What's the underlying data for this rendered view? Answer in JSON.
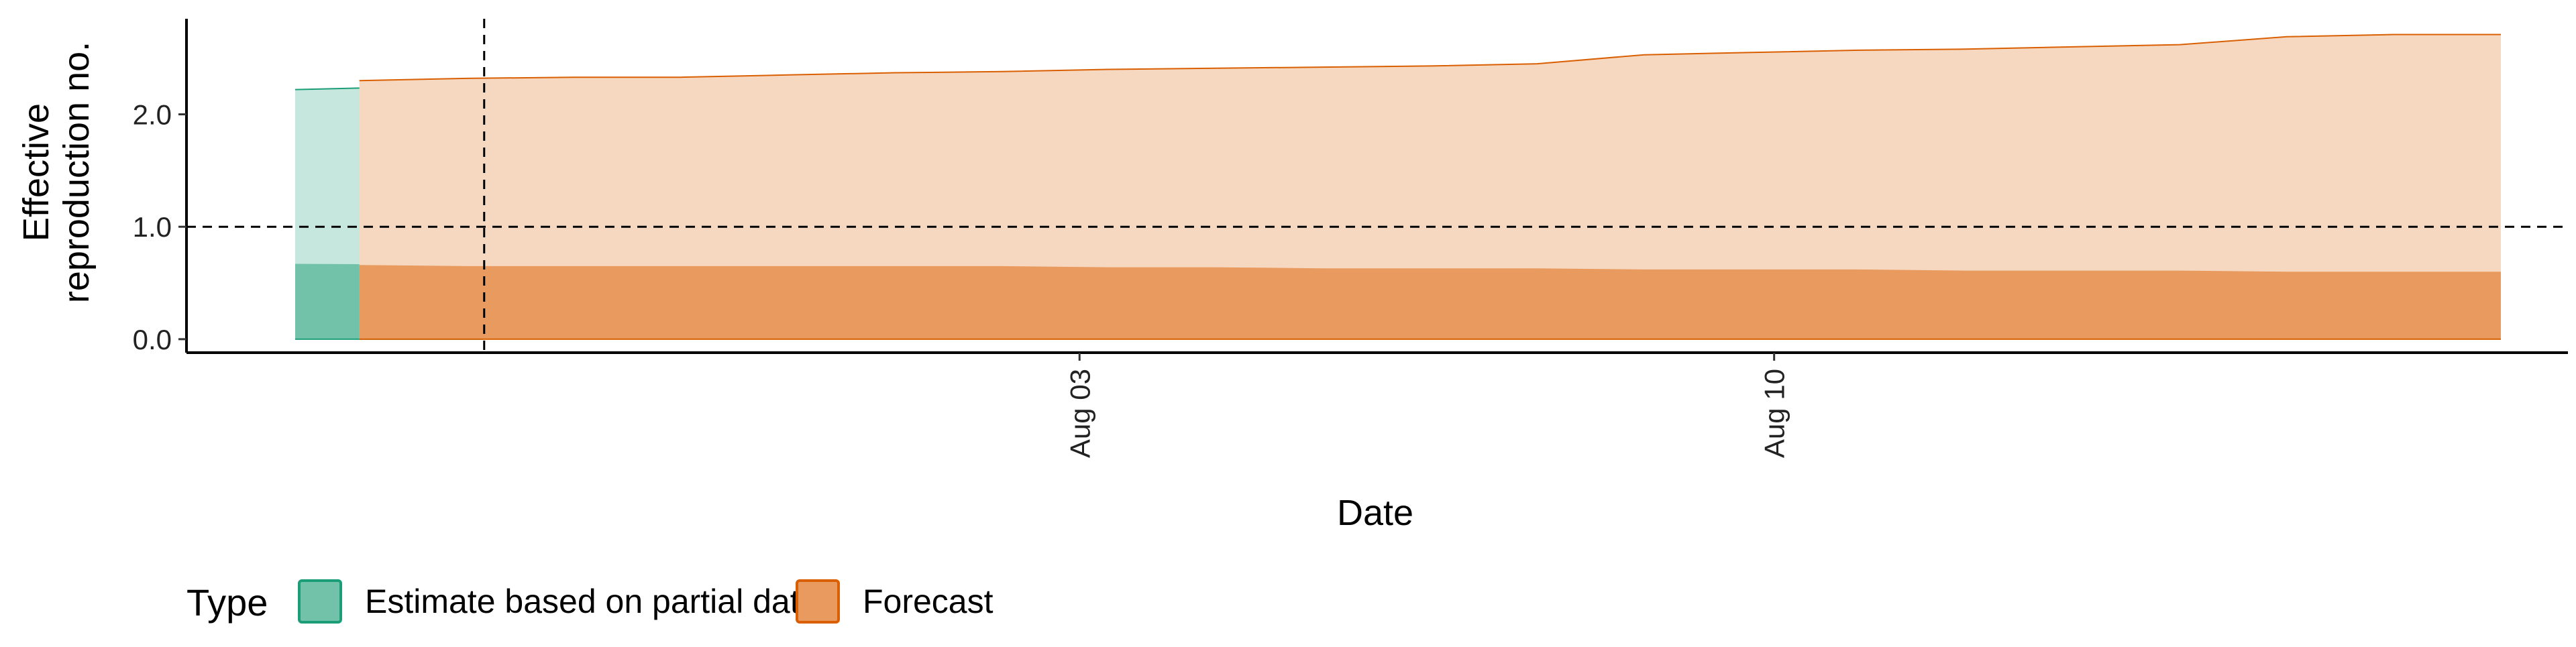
{
  "chart_data": {
    "type": "area",
    "xlabel": "Date",
    "ylabel": [
      "Effective",
      "reproduction no."
    ],
    "ylim": [
      -0.12,
      2.85
    ],
    "y_ticks": [
      {
        "value": 0.0,
        "label": "0.0"
      },
      {
        "value": 1.0,
        "label": "1.0"
      },
      {
        "value": 2.0,
        "label": "2.0"
      }
    ],
    "xlim": [
      "2020-07-25",
      "2020-08-18"
    ],
    "x_ticks": [
      {
        "date": "2020-08-03",
        "label": "Aug 03"
      },
      {
        "date": "2020-08-10",
        "label": "Aug 10"
      }
    ],
    "reference_lines": {
      "horizontal_y": 1.0,
      "vertical_date": "2020-07-28"
    },
    "legend": {
      "title": "Type",
      "position": "bottom-left",
      "items": [
        {
          "label": "Estimate based on partial data",
          "key": "estimate"
        },
        {
          "label": "Forecast",
          "key": "forecast"
        }
      ]
    },
    "series": [
      {
        "key": "estimate",
        "name": "Estimate based on partial data",
        "fill_outer": "#c5e7dd",
        "fill_inner": "#72c2aa",
        "stroke": "#1b9e77",
        "x": [
          "2020-07-26",
          "2020-07-28"
        ],
        "lower_outer": [
          0.0,
          0.0
        ],
        "upper_outer": [
          2.22,
          2.26
        ],
        "lower_inner": [
          0.0,
          0.0
        ],
        "upper_inner": [
          0.67,
          0.66
        ]
      },
      {
        "key": "forecast",
        "name": "Forecast",
        "fill_outer": "#f6d8c1",
        "fill_inner": "#e89a5f",
        "stroke": "#d95f02",
        "x": [
          "2020-07-29",
          "2020-07-30",
          "2020-07-31",
          "2020-08-01",
          "2020-08-02",
          "2020-08-03",
          "2020-08-04",
          "2020-08-05",
          "2020-08-06",
          "2020-08-07",
          "2020-08-08",
          "2020-08-09",
          "2020-08-10",
          "2020-08-11",
          "2020-08-12",
          "2020-08-13",
          "2020-08-14",
          "2020-08-15",
          "2020-08-16",
          "2020-08-17",
          "2020-08-18"
        ],
        "lower_outer": [
          0,
          0,
          0,
          0,
          0,
          0,
          0,
          0,
          0,
          0,
          0,
          0,
          0,
          0,
          0,
          0,
          0,
          0,
          0,
          0,
          0
        ],
        "upper_outer": [
          2.3,
          2.32,
          2.33,
          2.33,
          2.35,
          2.37,
          2.38,
          2.4,
          2.41,
          2.42,
          2.43,
          2.45,
          2.53,
          2.55,
          2.57,
          2.58,
          2.6,
          2.62,
          2.69,
          2.71,
          2.71
        ],
        "lower_inner": [
          0,
          0,
          0,
          0,
          0,
          0,
          0,
          0,
          0,
          0,
          0,
          0,
          0,
          0,
          0,
          0,
          0,
          0,
          0,
          0,
          0
        ],
        "upper_inner": [
          0.66,
          0.65,
          0.65,
          0.65,
          0.65,
          0.65,
          0.65,
          0.64,
          0.64,
          0.63,
          0.63,
          0.63,
          0.62,
          0.62,
          0.62,
          0.61,
          0.61,
          0.61,
          0.6,
          0.6,
          0.6
        ]
      }
    ]
  }
}
